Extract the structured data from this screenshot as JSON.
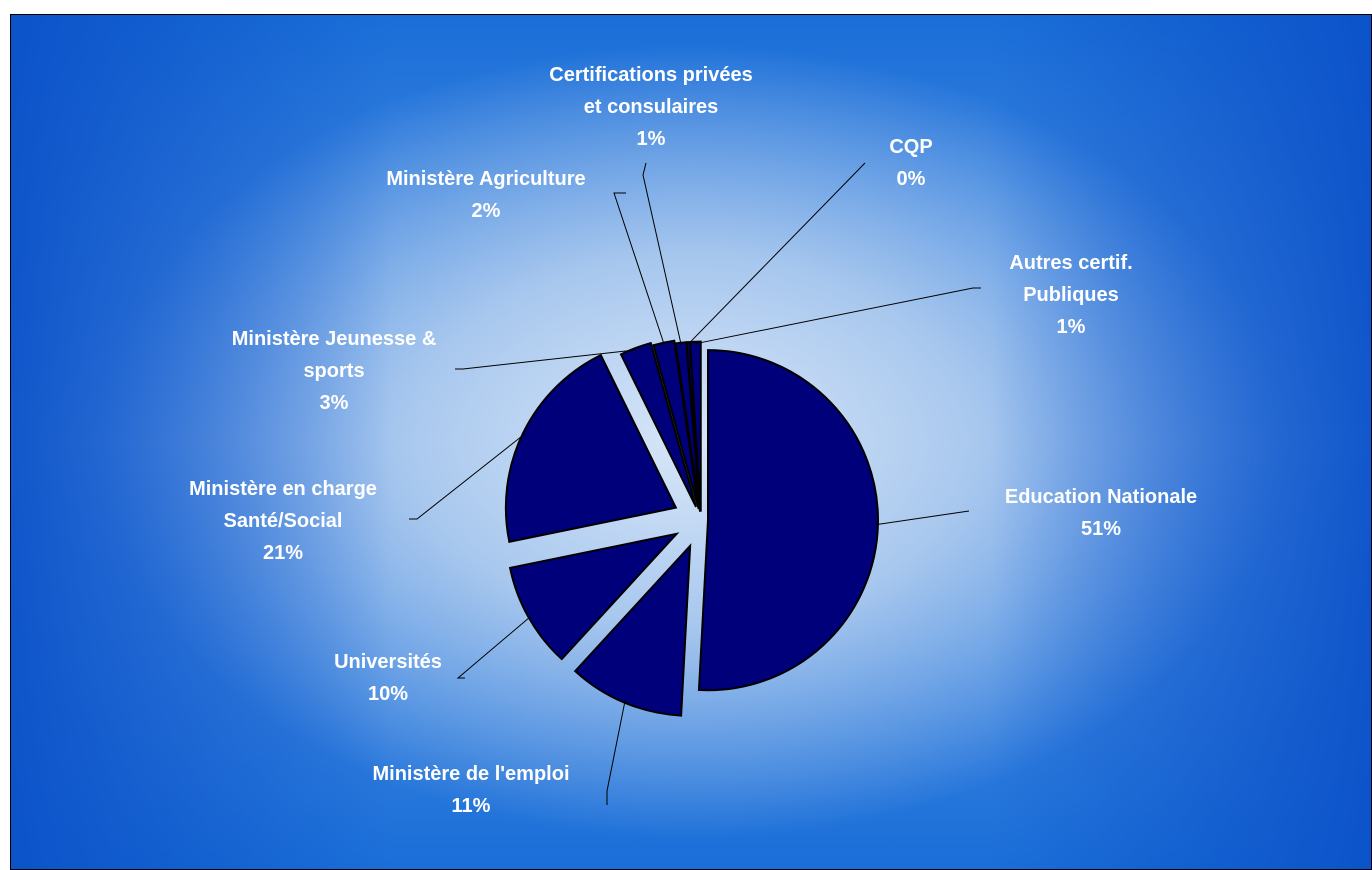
{
  "chart_data": {
    "type": "pie",
    "title": "",
    "slices": [
      {
        "name": "Education Nationale",
        "label": "51%",
        "value": 51
      },
      {
        "name": "Ministère de l'emploi",
        "label": "11%",
        "value": 11
      },
      {
        "name": "Universités",
        "label": "10%",
        "value": 10
      },
      {
        "name": "Ministère en charge Santé/Social",
        "label": "21%",
        "value": 21
      },
      {
        "name": "Ministère Jeunesse & sports",
        "label": "3%",
        "value": 3
      },
      {
        "name": "Ministère Agriculture",
        "label": "2%",
        "value": 2
      },
      {
        "name": "Certifications privées et consulaires",
        "label": "1%",
        "value": 1
      },
      {
        "name": "CQP",
        "label": "0%",
        "value": 0.3
      },
      {
        "name": "Autres certif. Publiques",
        "label": "1%",
        "value": 1
      }
    ],
    "colors": {
      "slice": "#00007a",
      "label": "#ffffff"
    }
  }
}
